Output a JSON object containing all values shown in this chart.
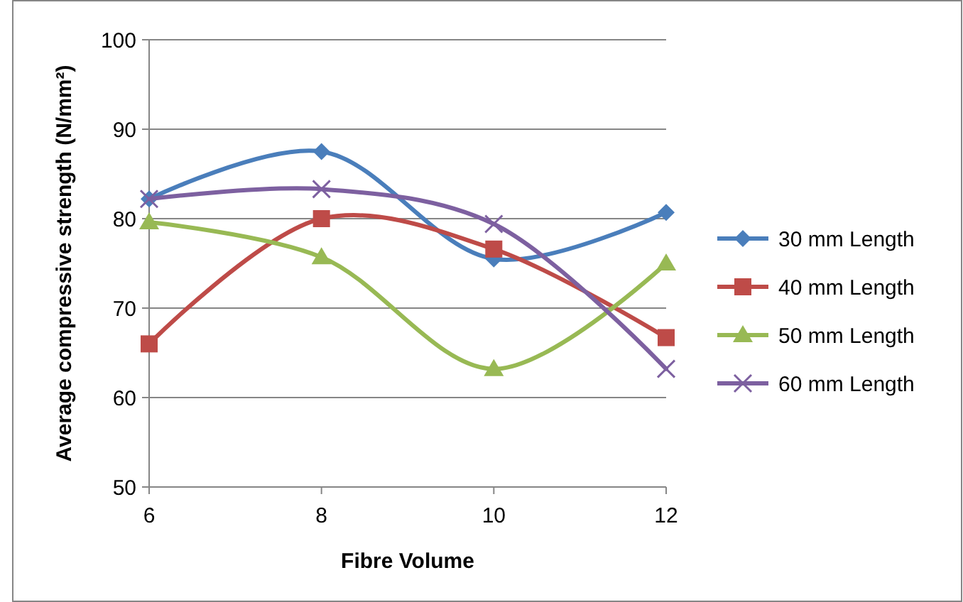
{
  "chart_data": {
    "type": "line",
    "xlabel": "Fibre Volume",
    "ylabel": "Average compressive strength (N/mm²)",
    "x": [
      6,
      8,
      10,
      12
    ],
    "xlim": [
      6,
      12
    ],
    "xticks": [
      6,
      8,
      10,
      12
    ],
    "ylim": [
      50,
      100
    ],
    "yticks": [
      50,
      60,
      70,
      80,
      90,
      100
    ],
    "grid": "y",
    "legend": "right",
    "series": [
      {
        "name": "30 mm Length",
        "color": "#4a7ebb",
        "marker": "diamond",
        "values": [
          82.2,
          87.5,
          75.5,
          80.7
        ]
      },
      {
        "name": "40 mm Length",
        "color": "#be4b48",
        "marker": "square",
        "values": [
          66,
          80,
          76.6,
          66.7
        ]
      },
      {
        "name": "50 mm Length",
        "color": "#98b954",
        "marker": "triangle",
        "values": [
          79.6,
          75.7,
          63.2,
          75
        ]
      },
      {
        "name": "60 mm Length",
        "color": "#7d60a0",
        "marker": "cross",
        "values": [
          82.2,
          83.3,
          79.4,
          63.2
        ]
      }
    ]
  }
}
